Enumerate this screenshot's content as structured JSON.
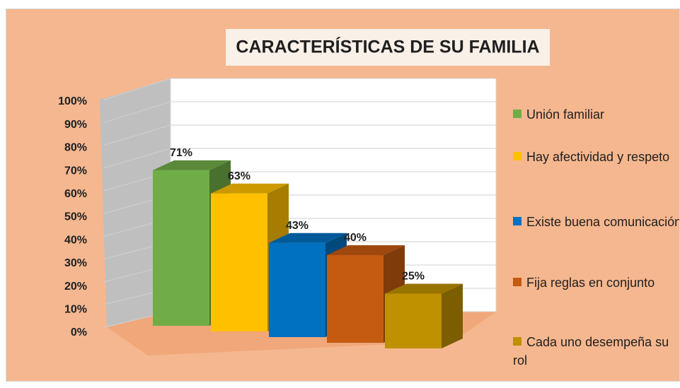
{
  "chart_data": {
    "type": "bar3d",
    "title": "CARACTERÍSTICAS DE SU FAMILIA",
    "categories": [
      "Unión familiar",
      "Hay afectividad y respeto",
      "Existe buena comunicación",
      "Fija reglas en conjunto",
      "Cada uno desempeña su rol"
    ],
    "values": [
      71,
      63,
      43,
      40,
      25
    ],
    "value_labels": [
      "71%",
      "63%",
      "43%",
      "40%",
      "25%"
    ],
    "colors": [
      "#70AD47",
      "#FFC000",
      "#0070C0",
      "#C55A11",
      "#BF9000"
    ],
    "ylim": [
      0,
      100
    ],
    "yticks": [
      {
        "value": 0,
        "label": "0%"
      },
      {
        "value": 10,
        "label": "10%"
      },
      {
        "value": 20,
        "label": "20%"
      },
      {
        "value": 30,
        "label": "30%"
      },
      {
        "value": 40,
        "label": "40%"
      },
      {
        "value": 50,
        "label": "50%"
      },
      {
        "value": 60,
        "label": "60%"
      },
      {
        "value": 70,
        "label": "70%"
      },
      {
        "value": 80,
        "label": "80%"
      },
      {
        "value": 90,
        "label": "90%"
      },
      {
        "value": 100,
        "label": "100%"
      }
    ],
    "grid": true,
    "legend": "right"
  }
}
